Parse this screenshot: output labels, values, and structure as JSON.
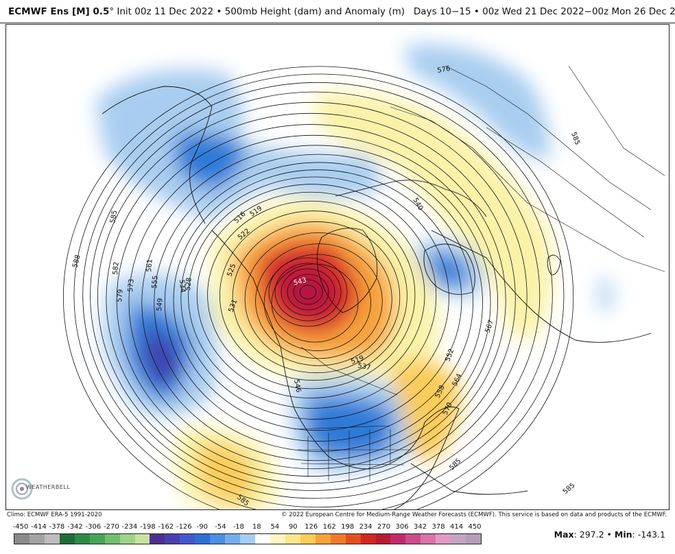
{
  "header": {
    "model": "ECMWF Ens [M] 0.5",
    "degree": "°",
    "init": "Init 00z 11 Dec 2022",
    "sep": "•",
    "product": "500mb Height (dam) and Anomaly (m)",
    "period": "Days 10−15",
    "valid": "00z Wed 21 Dec 2022−00z Mon 26 Dec 2022"
  },
  "map": {
    "height_labels": [
      {
        "text": "585"
      },
      {
        "text": "588"
      },
      {
        "text": "582"
      },
      {
        "text": "579"
      },
      {
        "text": "573"
      },
      {
        "text": "561"
      },
      {
        "text": "555"
      },
      {
        "text": "549"
      },
      {
        "text": "534"
      },
      {
        "text": "528"
      },
      {
        "text": "519"
      },
      {
        "text": "516"
      },
      {
        "text": "522"
      },
      {
        "text": "525"
      },
      {
        "text": "531"
      },
      {
        "text": "543"
      },
      {
        "text": "537"
      },
      {
        "text": "540"
      },
      {
        "text": "567"
      },
      {
        "text": "552"
      },
      {
        "text": "564"
      },
      {
        "text": "558"
      },
      {
        "text": "570"
      },
      {
        "text": "576"
      },
      {
        "text": "585"
      },
      {
        "text": "585"
      },
      {
        "text": "585"
      },
      {
        "text": "519"
      },
      {
        "text": "546"
      }
    ],
    "anomaly_colors": {
      "strong_negative": "#3f3fae",
      "negative": "#2f7ad8",
      "weak_negative": "#a9cdf0",
      "weak_positive": "#fbf2a8",
      "positive": "#f7a23a",
      "strong_positive": "#d7262a",
      "extreme_positive": "#b3123f"
    }
  },
  "logo": {
    "text": "WEATHERBELL"
  },
  "credits": {
    "left": "Climo: ECMWF ERA-5 1991-2020",
    "right": "© 2022 European Centre for Medium-Range Weather Forecasts (ECMWF). This service is based on data and products of the ECMWF."
  },
  "scale": {
    "ticks": [
      "-450",
      "-414",
      "-378",
      "-342",
      "-306",
      "-270",
      "-234",
      "-198",
      "-162",
      "-126",
      "-90",
      "-54",
      "-18",
      "18",
      "54",
      "90",
      "126",
      "162",
      "198",
      "234",
      "270",
      "306",
      "342",
      "378",
      "414",
      "450"
    ],
    "colors": [
      "#8a8a8a",
      "#a3a3a3",
      "#bdbdbd",
      "#1f6b3a",
      "#2e8a47",
      "#47a35a",
      "#72bd6e",
      "#9fd28a",
      "#c6e3a4",
      "#4c2f8c",
      "#4a3fb0",
      "#4457cc",
      "#2f6fd4",
      "#4a8fe2",
      "#74aeeb",
      "#a6cdf2",
      "#ffffff",
      "#fff6c4",
      "#fde68a",
      "#fbcc5a",
      "#f7a23a",
      "#ef7a2a",
      "#e2501f",
      "#d2281f",
      "#b81a2e",
      "#c02a6a",
      "#cc4b8c",
      "#d873a8",
      "#e09bc2",
      "#c2a6bf",
      "#b39fb8"
    ],
    "max_label": "Max",
    "max_value": "297.2",
    "bullet": "•",
    "min_label": "Min",
    "min_value": "-143.1"
  }
}
